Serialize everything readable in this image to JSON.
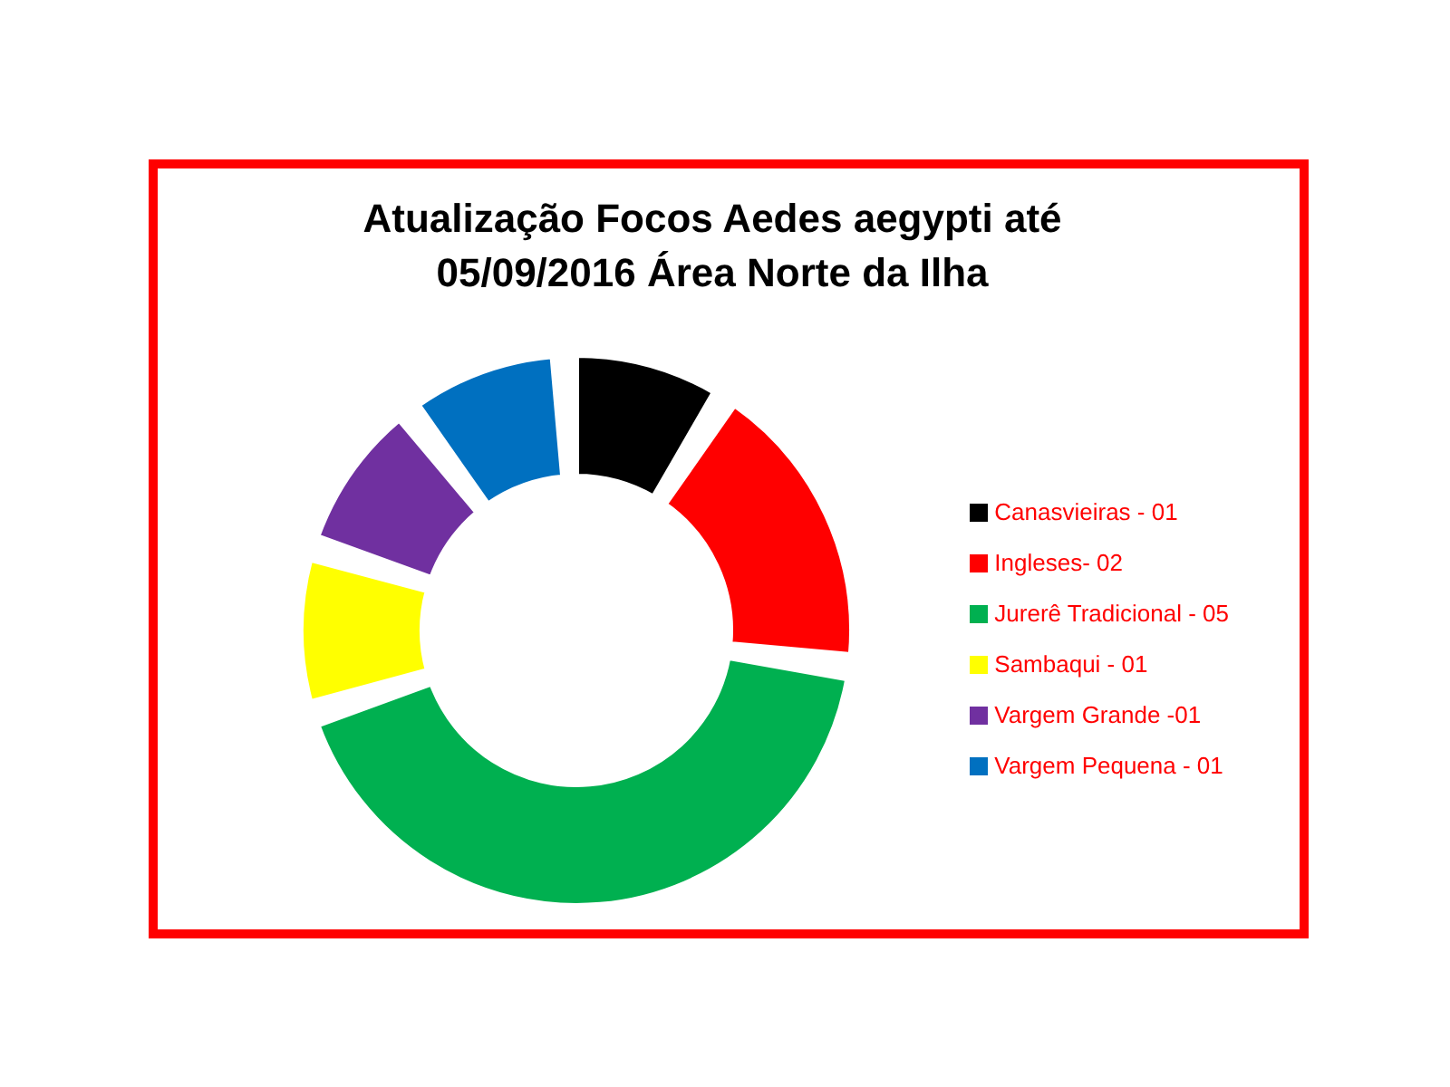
{
  "chart_data": {
    "type": "donut",
    "title": "Atualização Focos Aedes aegypti até 05/09/2016 Área Norte da Ilha",
    "categories": [
      "Canasvieiras - 01",
      "Ingleses- 02",
      "Jurerê Tradicional - 05",
      "Sambaqui - 01",
      "Vargem Grande -01",
      "Vargem Pequena - 01"
    ],
    "values": [
      9.1,
      18.2,
      45.4,
      9.1,
      9.1,
      9.1
    ],
    "colors": [
      "#000000",
      "#ff0000",
      "#00b050",
      "#ffff00",
      "#7030a0",
      "#0070c0"
    ],
    "legend": "right"
  }
}
